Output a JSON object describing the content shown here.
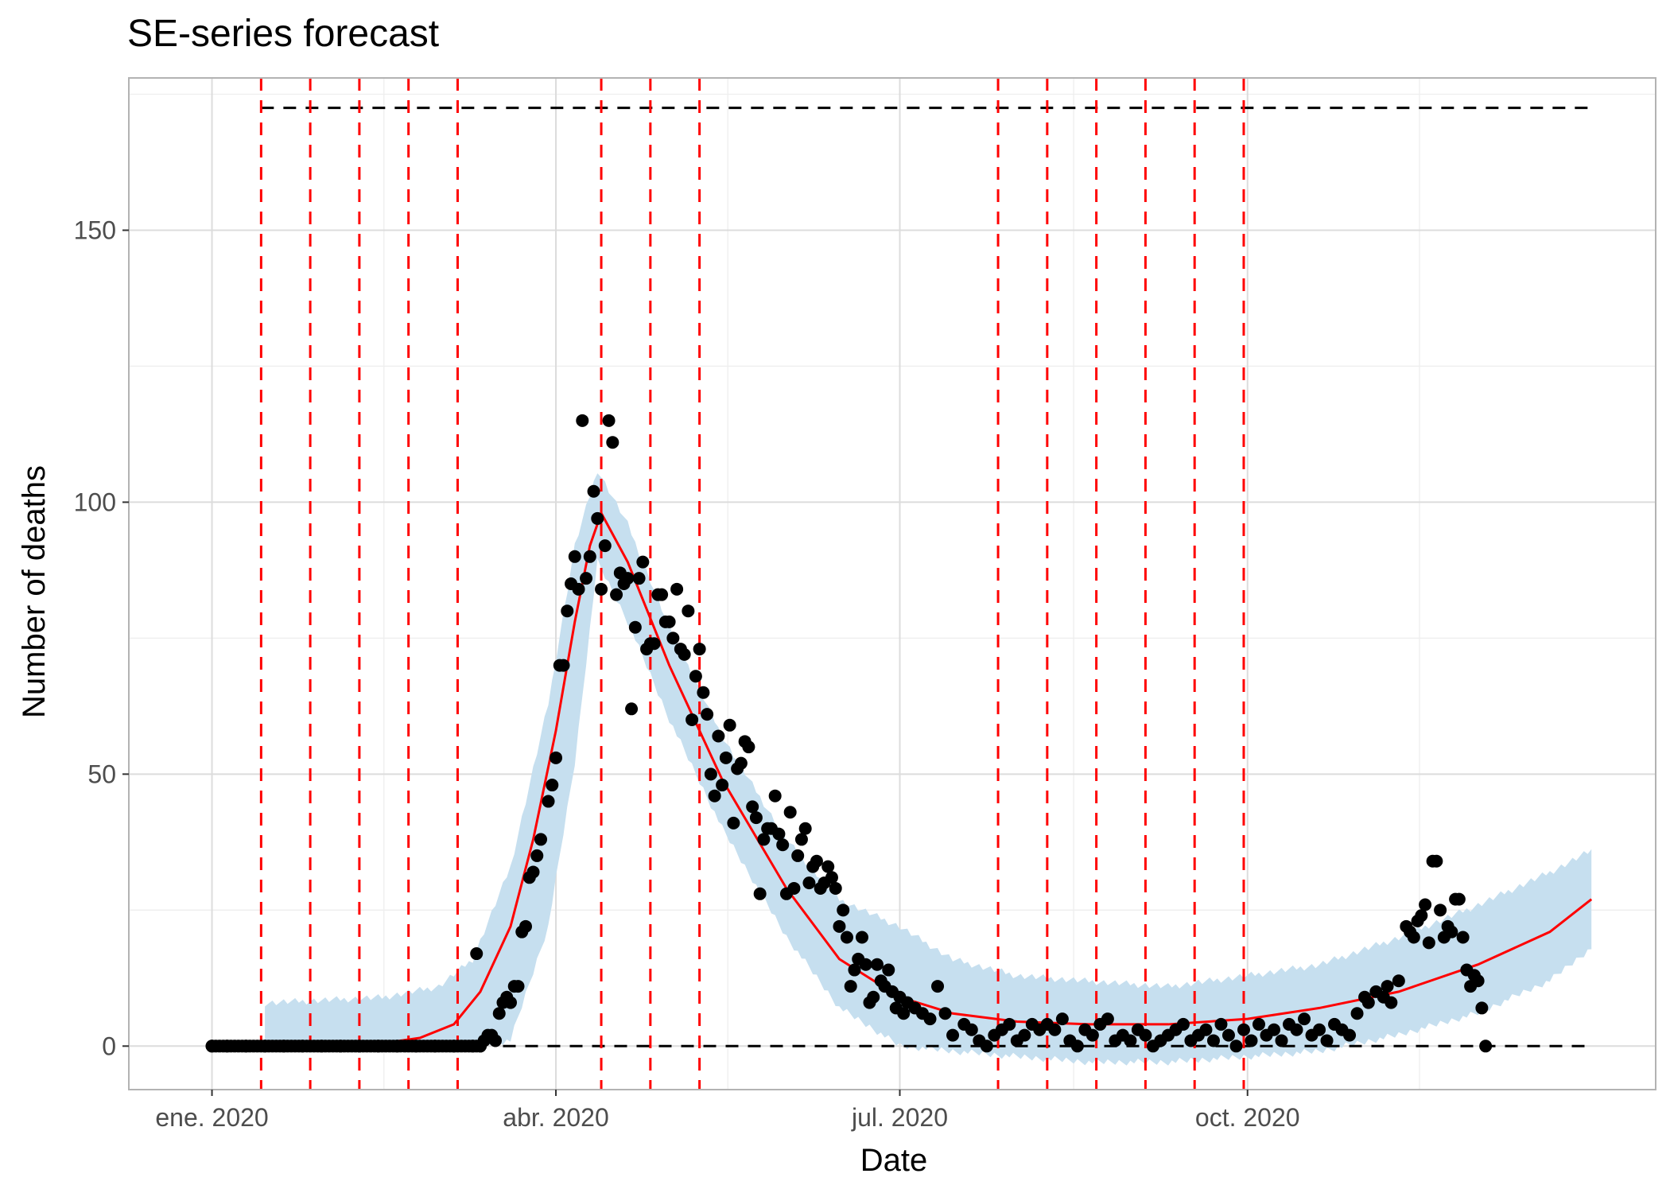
{
  "chart_data": {
    "type": "line",
    "title": "SE-series forecast",
    "xlabel": "Date",
    "ylabel": "Number of deaths",
    "x_range": [
      "2019-12-10",
      "2021-01-17"
    ],
    "ylim": [
      -8,
      178
    ],
    "x_ticks": [
      {
        "date": "2020-01-01",
        "label": "ene. 2020"
      },
      {
        "date": "2020-04-01",
        "label": "abr. 2020"
      },
      {
        "date": "2020-07-01",
        "label": "jul. 2020"
      },
      {
        "date": "2020-10-01",
        "label": "oct. 2020"
      }
    ],
    "y_ticks": [
      0,
      50,
      100,
      150
    ],
    "grid": true,
    "colors": {
      "band": "#c6dfef",
      "fit": "#ff0000",
      "points": "#000000",
      "vlines": "#ff0000",
      "hlines": "#000000",
      "panel_border": "#b3b3b3",
      "grid_major": "#dcdcdc",
      "grid_minor": "#eeeeee"
    },
    "horizontal_reference_lines": [
      {
        "y": 172.5,
        "x_start": "2020-01-14",
        "x_end": "2020-12-31"
      },
      {
        "y": 0,
        "x_start": "2020-03-18",
        "x_end": "2020-12-31"
      }
    ],
    "vertical_reference_lines": [
      "2020-01-14",
      "2020-01-27",
      "2020-02-09",
      "2020-02-22",
      "2020-03-06",
      "2020-04-13",
      "2020-04-26",
      "2020-05-09",
      "2020-07-27",
      "2020-08-09",
      "2020-08-22",
      "2020-09-04",
      "2020-09-17",
      "2020-09-30"
    ],
    "series": [
      {
        "kind": "ribbon",
        "x": [
          "2020-01-15",
          "2020-02-15",
          "2020-03-01",
          "2020-03-10",
          "2020-03-20",
          "2020-03-30",
          "2020-04-06",
          "2020-04-12",
          "2020-04-20",
          "2020-05-01",
          "2020-05-15",
          "2020-06-01",
          "2020-06-15",
          "2020-07-01",
          "2020-07-15",
          "2020-08-01",
          "2020-08-20",
          "2020-09-10",
          "2020-10-01",
          "2020-10-20",
          "2020-11-10",
          "2020-12-01",
          "2020-12-20",
          "2020-12-31"
        ],
        "lower": [
          0,
          0,
          0,
          0,
          1,
          22,
          52,
          89,
          78,
          60,
          40,
          20,
          7,
          0,
          -1,
          -2,
          -3,
          -3,
          -2,
          -1,
          2,
          6,
          12,
          18
        ],
        "upper": [
          8,
          9,
          11,
          16,
          33,
          63,
          92,
          106,
          96,
          77,
          57,
          38,
          27,
          22,
          16,
          13,
          12,
          11,
          13,
          15,
          20,
          26,
          32,
          36
        ]
      },
      {
        "kind": "line",
        "x": [
          "2020-01-15",
          "2020-02-01",
          "2020-02-15",
          "2020-02-25",
          "2020-03-05",
          "2020-03-12",
          "2020-03-20",
          "2020-03-26",
          "2020-04-01",
          "2020-04-06",
          "2020-04-10",
          "2020-04-13",
          "2020-04-20",
          "2020-05-01",
          "2020-05-15",
          "2020-06-01",
          "2020-06-15",
          "2020-07-01",
          "2020-07-15",
          "2020-08-01",
          "2020-08-20",
          "2020-09-10",
          "2020-10-01",
          "2020-10-20",
          "2020-11-10",
          "2020-12-01",
          "2020-12-20",
          "2020-12-31"
        ],
        "y": [
          0.3,
          0.3,
          0.5,
          1.5,
          4,
          10,
          22,
          38,
          58,
          78,
          92,
          98,
          89,
          70,
          49,
          29,
          16,
          9,
          6,
          4.5,
          4,
          4,
          5,
          7,
          10,
          15,
          21,
          27
        ]
      },
      {
        "kind": "scatter",
        "points": [
          [
            "2020-01-01",
            0
          ],
          [
            "2020-01-05",
            0
          ],
          [
            "2020-01-10",
            0
          ],
          [
            "2020-01-15",
            0
          ],
          [
            "2020-01-20",
            0
          ],
          [
            "2020-01-25",
            0
          ],
          [
            "2020-01-30",
            0
          ],
          [
            "2020-02-04",
            0
          ],
          [
            "2020-02-09",
            0
          ],
          [
            "2020-02-14",
            0
          ],
          [
            "2020-02-19",
            0
          ],
          [
            "2020-02-24",
            0
          ],
          [
            "2020-02-29",
            0
          ],
          [
            "2020-03-05",
            0
          ],
          [
            "2020-03-10",
            0
          ],
          [
            "2020-03-12",
            0
          ],
          [
            "2020-03-11",
            17
          ],
          [
            "2020-03-13",
            1
          ],
          [
            "2020-03-14",
            2
          ],
          [
            "2020-03-15",
            2
          ],
          [
            "2020-03-16",
            1
          ],
          [
            "2020-03-17",
            6
          ],
          [
            "2020-03-18",
            8
          ],
          [
            "2020-03-19",
            9
          ],
          [
            "2020-03-20",
            8
          ],
          [
            "2020-03-21",
            11
          ],
          [
            "2020-03-22",
            11
          ],
          [
            "2020-03-23",
            21
          ],
          [
            "2020-03-24",
            22
          ],
          [
            "2020-03-25",
            31
          ],
          [
            "2020-03-26",
            32
          ],
          [
            "2020-03-27",
            35
          ],
          [
            "2020-03-28",
            38
          ],
          [
            "2020-03-30",
            45
          ],
          [
            "2020-03-31",
            48
          ],
          [
            "2020-04-01",
            53
          ],
          [
            "2020-04-02",
            70
          ],
          [
            "2020-04-03",
            70
          ],
          [
            "2020-04-04",
            80
          ],
          [
            "2020-04-05",
            85
          ],
          [
            "2020-04-06",
            90
          ],
          [
            "2020-04-07",
            84
          ],
          [
            "2020-04-08",
            115
          ],
          [
            "2020-04-09",
            86
          ],
          [
            "2020-04-10",
            90
          ],
          [
            "2020-04-11",
            102
          ],
          [
            "2020-04-12",
            97
          ],
          [
            "2020-04-13",
            84
          ],
          [
            "2020-04-14",
            92
          ],
          [
            "2020-04-15",
            115
          ],
          [
            "2020-04-16",
            111
          ],
          [
            "2020-04-17",
            83
          ],
          [
            "2020-04-18",
            87
          ],
          [
            "2020-04-19",
            85
          ],
          [
            "2020-04-20",
            86
          ],
          [
            "2020-04-21",
            62
          ],
          [
            "2020-04-22",
            77
          ],
          [
            "2020-04-23",
            86
          ],
          [
            "2020-04-24",
            89
          ],
          [
            "2020-04-25",
            73
          ],
          [
            "2020-04-26",
            74
          ],
          [
            "2020-04-27",
            74
          ],
          [
            "2020-04-28",
            83
          ],
          [
            "2020-04-29",
            83
          ],
          [
            "2020-04-30",
            78
          ],
          [
            "2020-05-01",
            78
          ],
          [
            "2020-05-02",
            75
          ],
          [
            "2020-05-03",
            84
          ],
          [
            "2020-05-04",
            73
          ],
          [
            "2020-05-05",
            72
          ],
          [
            "2020-05-06",
            80
          ],
          [
            "2020-05-07",
            60
          ],
          [
            "2020-05-08",
            68
          ],
          [
            "2020-05-09",
            73
          ],
          [
            "2020-05-10",
            65
          ],
          [
            "2020-05-11",
            61
          ],
          [
            "2020-05-12",
            50
          ],
          [
            "2020-05-13",
            46
          ],
          [
            "2020-05-14",
            57
          ],
          [
            "2020-05-15",
            48
          ],
          [
            "2020-05-16",
            53
          ],
          [
            "2020-05-17",
            59
          ],
          [
            "2020-05-18",
            41
          ],
          [
            "2020-05-19",
            51
          ],
          [
            "2020-05-20",
            52
          ],
          [
            "2020-05-21",
            56
          ],
          [
            "2020-05-22",
            55
          ],
          [
            "2020-05-23",
            44
          ],
          [
            "2020-05-24",
            42
          ],
          [
            "2020-05-25",
            28
          ],
          [
            "2020-05-26",
            38
          ],
          [
            "2020-05-27",
            40
          ],
          [
            "2020-05-28",
            40
          ],
          [
            "2020-05-29",
            46
          ],
          [
            "2020-05-30",
            39
          ],
          [
            "2020-05-31",
            37
          ],
          [
            "2020-06-01",
            28
          ],
          [
            "2020-06-02",
            43
          ],
          [
            "2020-06-03",
            29
          ],
          [
            "2020-06-04",
            35
          ],
          [
            "2020-06-05",
            38
          ],
          [
            "2020-06-06",
            40
          ],
          [
            "2020-06-07",
            30
          ],
          [
            "2020-06-08",
            33
          ],
          [
            "2020-06-09",
            34
          ],
          [
            "2020-06-10",
            29
          ],
          [
            "2020-06-11",
            30
          ],
          [
            "2020-06-12",
            33
          ],
          [
            "2020-06-13",
            31
          ],
          [
            "2020-06-14",
            29
          ],
          [
            "2020-06-15",
            22
          ],
          [
            "2020-06-16",
            25
          ],
          [
            "2020-06-17",
            20
          ],
          [
            "2020-06-18",
            11
          ],
          [
            "2020-06-19",
            14
          ],
          [
            "2020-06-20",
            16
          ],
          [
            "2020-06-21",
            20
          ],
          [
            "2020-06-22",
            15
          ],
          [
            "2020-06-23",
            8
          ],
          [
            "2020-06-24",
            9
          ],
          [
            "2020-06-25",
            15
          ],
          [
            "2020-06-26",
            12
          ],
          [
            "2020-06-27",
            11
          ],
          [
            "2020-06-28",
            14
          ],
          [
            "2020-06-29",
            10
          ],
          [
            "2020-06-30",
            7
          ],
          [
            "2020-07-01",
            9
          ],
          [
            "2020-07-02",
            6
          ],
          [
            "2020-07-03",
            8
          ],
          [
            "2020-07-05",
            7
          ],
          [
            "2020-07-07",
            6
          ],
          [
            "2020-07-09",
            5
          ],
          [
            "2020-07-11",
            11
          ],
          [
            "2020-07-13",
            6
          ],
          [
            "2020-07-15",
            2
          ],
          [
            "2020-07-18",
            4
          ],
          [
            "2020-07-20",
            3
          ],
          [
            "2020-07-22",
            1
          ],
          [
            "2020-07-24",
            0
          ],
          [
            "2020-07-26",
            2
          ],
          [
            "2020-07-28",
            3
          ],
          [
            "2020-07-30",
            4
          ],
          [
            "2020-08-01",
            1
          ],
          [
            "2020-08-03",
            2
          ],
          [
            "2020-08-05",
            4
          ],
          [
            "2020-08-07",
            3
          ],
          [
            "2020-08-09",
            4
          ],
          [
            "2020-08-11",
            3
          ],
          [
            "2020-08-13",
            5
          ],
          [
            "2020-08-15",
            1
          ],
          [
            "2020-08-17",
            0
          ],
          [
            "2020-08-19",
            3
          ],
          [
            "2020-08-21",
            2
          ],
          [
            "2020-08-23",
            4
          ],
          [
            "2020-08-25",
            5
          ],
          [
            "2020-08-27",
            1
          ],
          [
            "2020-08-29",
            2
          ],
          [
            "2020-08-31",
            1
          ],
          [
            "2020-09-02",
            3
          ],
          [
            "2020-09-04",
            2
          ],
          [
            "2020-09-06",
            0
          ],
          [
            "2020-09-08",
            1
          ],
          [
            "2020-09-10",
            2
          ],
          [
            "2020-09-12",
            3
          ],
          [
            "2020-09-14",
            4
          ],
          [
            "2020-09-16",
            1
          ],
          [
            "2020-09-18",
            2
          ],
          [
            "2020-09-20",
            3
          ],
          [
            "2020-09-22",
            1
          ],
          [
            "2020-09-24",
            4
          ],
          [
            "2020-09-26",
            2
          ],
          [
            "2020-09-28",
            0
          ],
          [
            "2020-09-30",
            3
          ],
          [
            "2020-10-02",
            1
          ],
          [
            "2020-10-04",
            4
          ],
          [
            "2020-10-06",
            2
          ],
          [
            "2020-10-08",
            3
          ],
          [
            "2020-10-10",
            1
          ],
          [
            "2020-10-12",
            4
          ],
          [
            "2020-10-14",
            3
          ],
          [
            "2020-10-16",
            5
          ],
          [
            "2020-10-18",
            2
          ],
          [
            "2020-10-20",
            3
          ],
          [
            "2020-10-22",
            1
          ],
          [
            "2020-10-24",
            4
          ],
          [
            "2020-10-26",
            3
          ],
          [
            "2020-10-28",
            2
          ],
          [
            "2020-10-30",
            6
          ],
          [
            "2020-11-01",
            9
          ],
          [
            "2020-11-02",
            8
          ],
          [
            "2020-11-04",
            10
          ],
          [
            "2020-11-06",
            9
          ],
          [
            "2020-11-07",
            11
          ],
          [
            "2020-11-08",
            8
          ],
          [
            "2020-11-10",
            12
          ],
          [
            "2020-11-12",
            22
          ],
          [
            "2020-11-13",
            21
          ],
          [
            "2020-11-14",
            20
          ],
          [
            "2020-11-15",
            23
          ],
          [
            "2020-11-16",
            24
          ],
          [
            "2020-11-17",
            26
          ],
          [
            "2020-11-18",
            19
          ],
          [
            "2020-11-19",
            34
          ],
          [
            "2020-11-20",
            34
          ],
          [
            "2020-11-21",
            25
          ],
          [
            "2020-11-22",
            20
          ],
          [
            "2020-11-23",
            22
          ],
          [
            "2020-11-24",
            21
          ],
          [
            "2020-11-25",
            27
          ],
          [
            "2020-11-26",
            27
          ],
          [
            "2020-11-27",
            20
          ],
          [
            "2020-11-28",
            14
          ],
          [
            "2020-11-29",
            11
          ],
          [
            "2020-11-30",
            13
          ],
          [
            "2020-12-01",
            12
          ],
          [
            "2020-12-02",
            7
          ],
          [
            "2020-12-03",
            0
          ]
        ]
      }
    ]
  }
}
